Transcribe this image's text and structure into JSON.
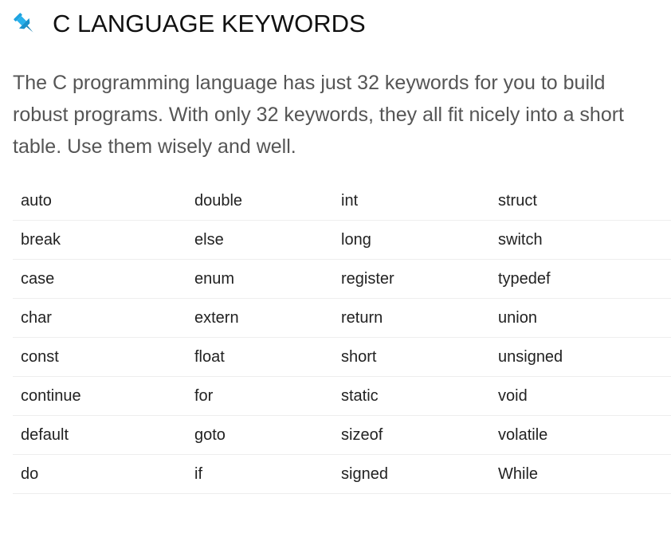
{
  "header": {
    "icon": "pushpin-icon",
    "icon_color": "#1fa3e0",
    "title": "C LANGUAGE KEYWORDS"
  },
  "intro": {
    "text": "The C programming language has just 32 keywords for you to build robust programs. With only 32 keywords, they all fit nicely into a short table. Use them wisely and well."
  },
  "keywords": {
    "rows": [
      [
        "auto",
        "double",
        "int",
        "struct"
      ],
      [
        "break",
        "else",
        "long",
        "switch"
      ],
      [
        "case",
        "enum",
        "register",
        "typedef"
      ],
      [
        "char",
        "extern",
        "return",
        "union"
      ],
      [
        "const",
        "float",
        "short",
        "unsigned"
      ],
      [
        "continue",
        "for",
        "static",
        "void"
      ],
      [
        "default",
        "goto",
        "sizeof",
        "volatile"
      ],
      [
        "do",
        "if",
        "signed",
        "While"
      ]
    ]
  }
}
